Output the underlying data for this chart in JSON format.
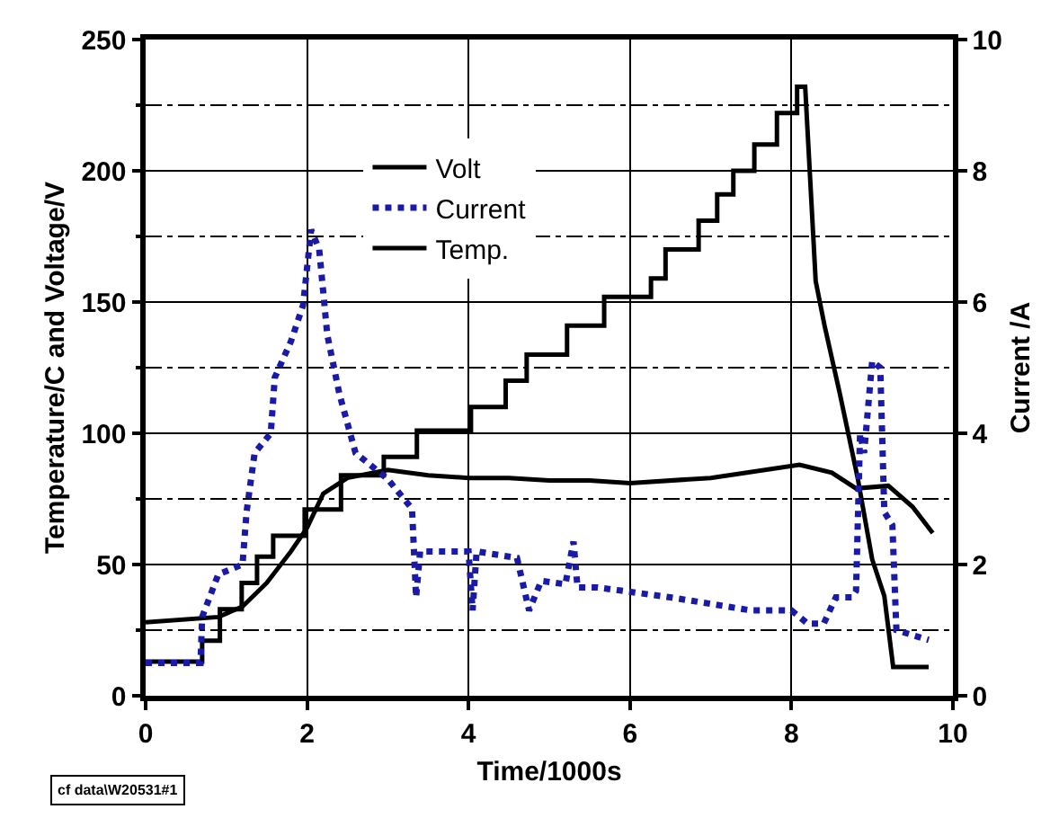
{
  "chart_data": {
    "type": "line",
    "xlabel": "Time/1000s",
    "ylabel": "Temperature/C and Voltage/V",
    "y2label": "Current /A",
    "xlim": [
      0,
      10
    ],
    "xticks": [
      0,
      2,
      4,
      6,
      8,
      10
    ],
    "ylim": [
      0,
      250
    ],
    "yticks": [
      0,
      {
        "value": 25,
        "label": null
      },
      50,
      {
        "value": 75,
        "label": null
      },
      100,
      {
        "value": 125,
        "label": null
      },
      150,
      {
        "value": 175,
        "label": null
      },
      200,
      {
        "value": 225,
        "label": null
      },
      250
    ],
    "y2lim": [
      0,
      10
    ],
    "y2ticks": [
      0,
      2,
      4,
      6,
      8,
      10
    ],
    "grid": true,
    "legend": "top left",
    "marker": "none",
    "annotations": [
      "cf data\\W20531#1"
    ],
    "series": [
      {
        "name": "Volt",
        "color": "#000000",
        "line_style": "solid",
        "x": [
          0,
          0.7,
          0.7,
          0.92,
          0.92,
          1.19,
          1.19,
          1.38,
          1.38,
          1.58,
          1.58,
          1.97,
          1.97,
          2.42,
          2.42,
          2.95,
          2.95,
          3.36,
          3.36,
          4.03,
          4.03,
          4.46,
          4.46,
          4.72,
          4.72,
          5.22,
          5.22,
          5.68,
          5.68,
          6.26,
          6.26,
          6.44,
          6.44,
          6.85,
          6.85,
          7.08,
          7.08,
          7.28,
          7.28,
          7.54,
          7.54,
          7.82,
          7.82,
          8.07,
          8.07,
          8.17,
          8.3,
          8.41,
          8.6,
          8.82,
          9.0,
          9.15,
          9.26,
          9.7
        ],
        "values": [
          13,
          13,
          21,
          21,
          33,
          33,
          43,
          43,
          53,
          53,
          61,
          61,
          71,
          71,
          84,
          84,
          91,
          91,
          101,
          101,
          110,
          110,
          120,
          120,
          130,
          130,
          141,
          141,
          152,
          152,
          159,
          159,
          170,
          170,
          181,
          181,
          191,
          191,
          200,
          200,
          210,
          210,
          222,
          222,
          232,
          232,
          158,
          141,
          115,
          83,
          52,
          38,
          11,
          11
        ]
      },
      {
        "name": "Current",
        "color": "#1a1aa8",
        "line_style": "dotted",
        "axis": "y2",
        "x": [
          0,
          0.68,
          0.7,
          0.9,
          1.2,
          1.25,
          1.35,
          1.55,
          1.6,
          1.8,
          1.95,
          2.05,
          2.15,
          2.25,
          2.4,
          2.6,
          3.0,
          3.3,
          3.35,
          3.4,
          4.0,
          4.05,
          4.1,
          4.6,
          4.75,
          4.9,
          5.2,
          5.3,
          5.35,
          5.6,
          6.5,
          7.0,
          7.5,
          8.0,
          8.2,
          8.4,
          8.55,
          8.75,
          8.8,
          8.85,
          8.9,
          9.0,
          9.1,
          9.15,
          9.25,
          9.3,
          9.7
        ],
        "values": [
          0.5,
          0.5,
          1.2,
          1.85,
          2.0,
          2.8,
          3.7,
          4.0,
          4.85,
          5.4,
          5.95,
          7.1,
          6.8,
          5.5,
          4.6,
          3.7,
          3.3,
          2.85,
          1.5,
          2.2,
          2.2,
          1.3,
          2.2,
          2.1,
          1.3,
          1.75,
          1.7,
          2.35,
          1.65,
          1.65,
          1.5,
          1.4,
          1.3,
          1.3,
          1.1,
          1.1,
          1.5,
          1.5,
          1.6,
          4.0,
          3.7,
          5.1,
          5.0,
          2.8,
          2.6,
          1.0,
          0.85
        ]
      },
      {
        "name": "Temp.",
        "color": "#000000",
        "line_style": "solid",
        "x": [
          0,
          0.9,
          1.2,
          1.5,
          1.8,
          2.0,
          2.2,
          2.5,
          3.0,
          3.5,
          4.0,
          4.5,
          5.0,
          5.5,
          6.0,
          7.0,
          8.1,
          8.5,
          8.8,
          9.2,
          9.5,
          9.75
        ],
        "values": [
          28,
          30,
          34,
          43,
          55,
          64,
          77,
          83,
          86,
          84,
          83,
          83,
          82,
          82,
          81,
          83,
          88,
          85,
          79,
          80,
          72,
          62
        ]
      }
    ]
  }
}
